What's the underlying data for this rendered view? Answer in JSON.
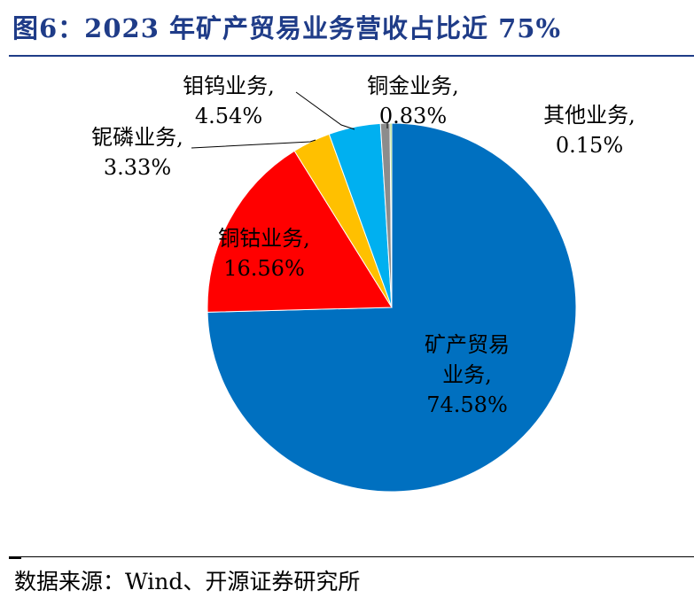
{
  "title": "图6：2023 年矿产贸易业务营收占比近 75%",
  "source": "数据来源：Wind、开源证券研究所",
  "chart_data": {
    "type": "pie",
    "start": "12 o'clock",
    "direction": "clockwise",
    "slices": [
      {
        "name": "矿产贸易业务",
        "value": 74.58,
        "pct_label": "74.58%",
        "name_lines": [
          "矿产贸易",
          "业务,"
        ],
        "color": "#0070c0"
      },
      {
        "name": "铜钴业务",
        "value": 16.56,
        "pct_label": "16.56%",
        "name_lines": [
          "铜钴业务,"
        ],
        "color": "#ff0000"
      },
      {
        "name": "铌磷业务",
        "value": 3.33,
        "pct_label": "3.33%",
        "name_lines": [
          "铌磷业务,"
        ],
        "color": "#ffc000"
      },
      {
        "name": "钼钨业务",
        "value": 4.54,
        "pct_label": "4.54%",
        "name_lines": [
          "钼钨业务,"
        ],
        "color": "#00b0f0"
      },
      {
        "name": "铜金业务",
        "value": 0.83,
        "pct_label": "0.83%",
        "name_lines": [
          "铜金业务,"
        ],
        "color": "#8c8c8c"
      },
      {
        "name": "其他业务",
        "value": 0.15,
        "pct_label": "0.15%",
        "name_lines": [
          "其他业务,"
        ],
        "color": "#92d050"
      }
    ]
  }
}
